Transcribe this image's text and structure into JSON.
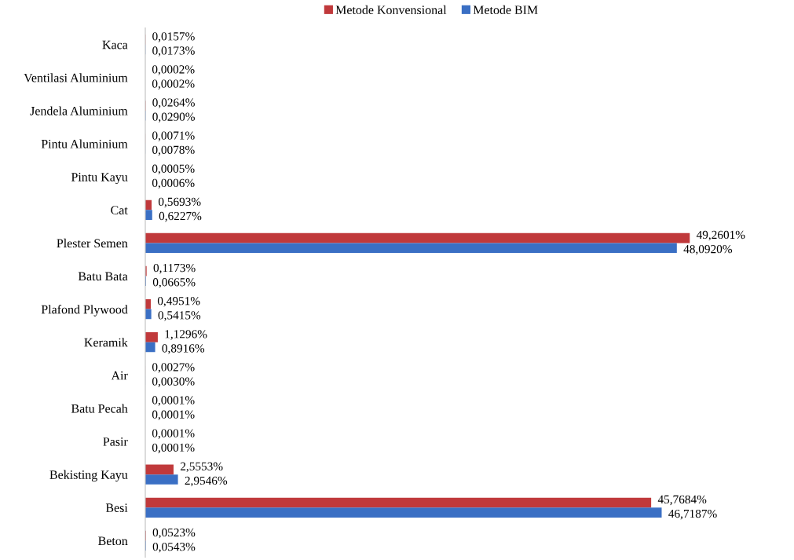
{
  "chart_data": {
    "type": "bar",
    "orientation": "horizontal",
    "legend": "top",
    "categories": [
      "Kaca",
      "Ventilasi Aluminium",
      "Jendela Aluminium",
      "Pintu Aluminium",
      "Pintu Kayu",
      "Cat",
      "Plester Semen",
      "Batu Bata",
      "Plafond Plywood",
      "Keramik",
      "Air",
      "Batu Pecah",
      "Pasir",
      "Bekisting Kayu",
      "Besi",
      "Beton"
    ],
    "series": [
      {
        "name": "Metode Konvensional",
        "color": "#c0393b",
        "values": [
          0.0157,
          0.0002,
          0.0264,
          0.0071,
          0.0005,
          0.5693,
          49.2601,
          0.1173,
          0.4951,
          1.1296,
          0.0027,
          0.0001,
          0.0001,
          2.5553,
          45.7684,
          0.0523
        ],
        "value_labels": [
          "0,0157%",
          "0,0002%",
          "0,0264%",
          "0,0071%",
          "0,0005%",
          "0,5693%",
          "49,2601%",
          "0,1173%",
          "0,4951%",
          "1,1296%",
          "0,0027%",
          "0,0001%",
          "0,0001%",
          "2,5553%",
          "45,7684%",
          "0,0523%"
        ]
      },
      {
        "name": "Metode BIM",
        "color": "#3a6fc4",
        "values": [
          0.0173,
          0.0002,
          0.029,
          0.0078,
          0.0006,
          0.6227,
          48.092,
          0.0665,
          0.5415,
          0.8916,
          0.003,
          0.0001,
          0.0001,
          2.9546,
          46.7187,
          0.0543
        ],
        "value_labels": [
          "0,0173%",
          "0,0002%",
          "0,0290%",
          "0,0078%",
          "0,0006%",
          "0,6227%",
          "48,0920%",
          "0,0665%",
          "0,5415%",
          "0,8916%",
          "0,0030%",
          "0,0001%",
          "0,0001%",
          "2,9546%",
          "46,7187%",
          "0,0543%"
        ]
      }
    ]
  }
}
